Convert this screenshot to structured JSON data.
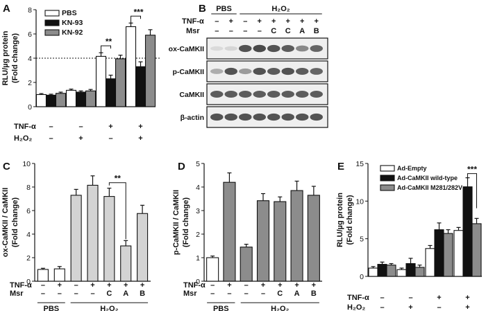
{
  "panels": {
    "A": {
      "label": "A"
    },
    "B": {
      "label": "B"
    },
    "C": {
      "label": "C"
    },
    "D": {
      "label": "D"
    },
    "E": {
      "label": "E"
    }
  },
  "blot": {
    "groups": [
      "PBS",
      "H₂O₂"
    ],
    "tnf_label": "TNF-α",
    "msr_label": "Msr",
    "tnf_row": [
      "–",
      "+",
      "–",
      "+",
      "+",
      "+",
      "+",
      "+"
    ],
    "msr_row": [
      "–",
      "–",
      "–",
      "–",
      "C",
      "C",
      "A",
      "B"
    ],
    "bands": [
      "ox-CaMKII",
      "p-CaMKII",
      "CaMKII",
      "β-actin"
    ],
    "band_intensity": {
      "ox-CaMKII": [
        0.1,
        0.12,
        0.85,
        0.9,
        0.85,
        0.8,
        0.55,
        0.75
      ],
      "p-CaMKII": [
        0.35,
        0.85,
        0.45,
        0.85,
        0.8,
        0.85,
        0.8,
        0.75
      ],
      "CaMKII": [
        0.8,
        0.8,
        0.8,
        0.8,
        0.8,
        0.8,
        0.8,
        0.8
      ],
      "β-actin": [
        0.85,
        0.85,
        0.85,
        0.85,
        0.85,
        0.85,
        0.85,
        0.85
      ]
    }
  },
  "chart_data": [
    {
      "panel": "A",
      "type": "bar",
      "ylabel": "RLU/µg protein (Fold change)",
      "ylim": [
        0,
        8
      ],
      "yticks": [
        0,
        2,
        4,
        6,
        8
      ],
      "reference_line": 4,
      "row_labels": [
        "TNF-α",
        "H₂O₂"
      ],
      "groups": [
        {
          "tnf": "–",
          "h2o2": "–"
        },
        {
          "tnf": "–",
          "h2o2": "+"
        },
        {
          "tnf": "+",
          "h2o2": "–"
        },
        {
          "tnf": "+",
          "h2o2": "+"
        }
      ],
      "series": [
        {
          "name": "PBS",
          "color": "#ffffff",
          "values": [
            1.0,
            1.35,
            4.15,
            6.6
          ],
          "errors": [
            0.08,
            0.1,
            0.3,
            0.3
          ]
        },
        {
          "name": "KN-93",
          "color": "#111111",
          "values": [
            0.95,
            1.2,
            2.3,
            3.3
          ],
          "errors": [
            0.08,
            0.1,
            0.3,
            0.4
          ]
        },
        {
          "name": "KN-92",
          "color": "#8c8c8c",
          "values": [
            1.1,
            1.3,
            3.95,
            5.9
          ],
          "errors": [
            0.1,
            0.12,
            0.3,
            0.45
          ]
        }
      ],
      "significance": [
        {
          "text": "**",
          "group": 2
        },
        {
          "text": "***",
          "group": 3
        }
      ]
    },
    {
      "panel": "C",
      "type": "bar",
      "ylabel": "ox-CaMKII / CaMKII (Fold change)",
      "ylim": [
        0,
        10
      ],
      "yticks": [
        0,
        2,
        4,
        6,
        8,
        10
      ],
      "row_labels": [
        "TNF-α",
        "Msr"
      ],
      "tnf_row": [
        "–",
        "+",
        "–",
        "+",
        "+",
        "+",
        "+"
      ],
      "msr_row": [
        "–",
        "–",
        "–",
        "–",
        "C",
        "A",
        "B"
      ],
      "group_labels": [
        "PBS",
        "H₂O₂"
      ],
      "values": [
        1.0,
        1.05,
        7.3,
        8.15,
        7.2,
        3.0,
        5.75
      ],
      "errors": [
        0.1,
        0.2,
        0.5,
        0.8,
        0.7,
        0.45,
        0.7
      ],
      "colors": [
        "#ffffff",
        "#ffffff",
        "#d3d3d3",
        "#d3d3d3",
        "#d3d3d3",
        "#d3d3d3",
        "#d3d3d3"
      ],
      "significance": [
        {
          "text": "**",
          "from": 4,
          "to": 5
        }
      ]
    },
    {
      "panel": "D",
      "type": "bar",
      "ylabel": "p-CaMKII / CaMKII (Fold change)",
      "ylim": [
        0,
        5
      ],
      "yticks": [
        0,
        1,
        2,
        3,
        4,
        5
      ],
      "row_labels": [
        "TNF-α",
        "Msr"
      ],
      "tnf_row": [
        "–",
        "+",
        "–",
        "+",
        "+",
        "+",
        "+"
      ],
      "msr_row": [
        "–",
        "–",
        "–",
        "–",
        "C",
        "A",
        "B"
      ],
      "group_labels": [
        "PBS",
        "H₂O₂"
      ],
      "values": [
        1.0,
        4.2,
        1.45,
        3.42,
        3.38,
        3.85,
        3.65
      ],
      "errors": [
        0.07,
        0.4,
        0.12,
        0.3,
        0.2,
        0.4,
        0.38
      ],
      "colors": [
        "#ffffff",
        "#8c8c8c",
        "#8c8c8c",
        "#8c8c8c",
        "#8c8c8c",
        "#8c8c8c",
        "#8c8c8c"
      ]
    },
    {
      "panel": "E",
      "type": "bar",
      "ylabel": "RLU/µg protein (Fold change)",
      "ylim": [
        0,
        15
      ],
      "yticks": [
        0,
        5,
        10,
        15
      ],
      "row_labels": [
        "TNF-α",
        "H₂O₂"
      ],
      "groups": [
        {
          "tnf": "–",
          "h2o2": "–"
        },
        {
          "tnf": "–",
          "h2o2": "+"
        },
        {
          "tnf": "+",
          "h2o2": "–"
        },
        {
          "tnf": "+",
          "h2o2": "+"
        }
      ],
      "series": [
        {
          "name": "Ad-Empty",
          "color": "#ffffff",
          "values": [
            1.1,
            0.9,
            3.7,
            6.1
          ],
          "errors": [
            0.2,
            0.2,
            0.4,
            0.4
          ]
        },
        {
          "name": "Ad-CaMKII wild-type",
          "color": "#111111",
          "values": [
            1.6,
            1.7,
            6.2,
            11.9
          ],
          "errors": [
            0.3,
            0.7,
            0.9,
            1.2
          ]
        },
        {
          "name": "Ad-CaMKII M281/282V",
          "color": "#8c8c8c",
          "values": [
            1.5,
            1.2,
            5.7,
            7.0
          ],
          "errors": [
            0.2,
            0.3,
            0.5,
            0.7
          ]
        }
      ],
      "significance": [
        {
          "text": "***",
          "group": 3
        }
      ]
    }
  ]
}
